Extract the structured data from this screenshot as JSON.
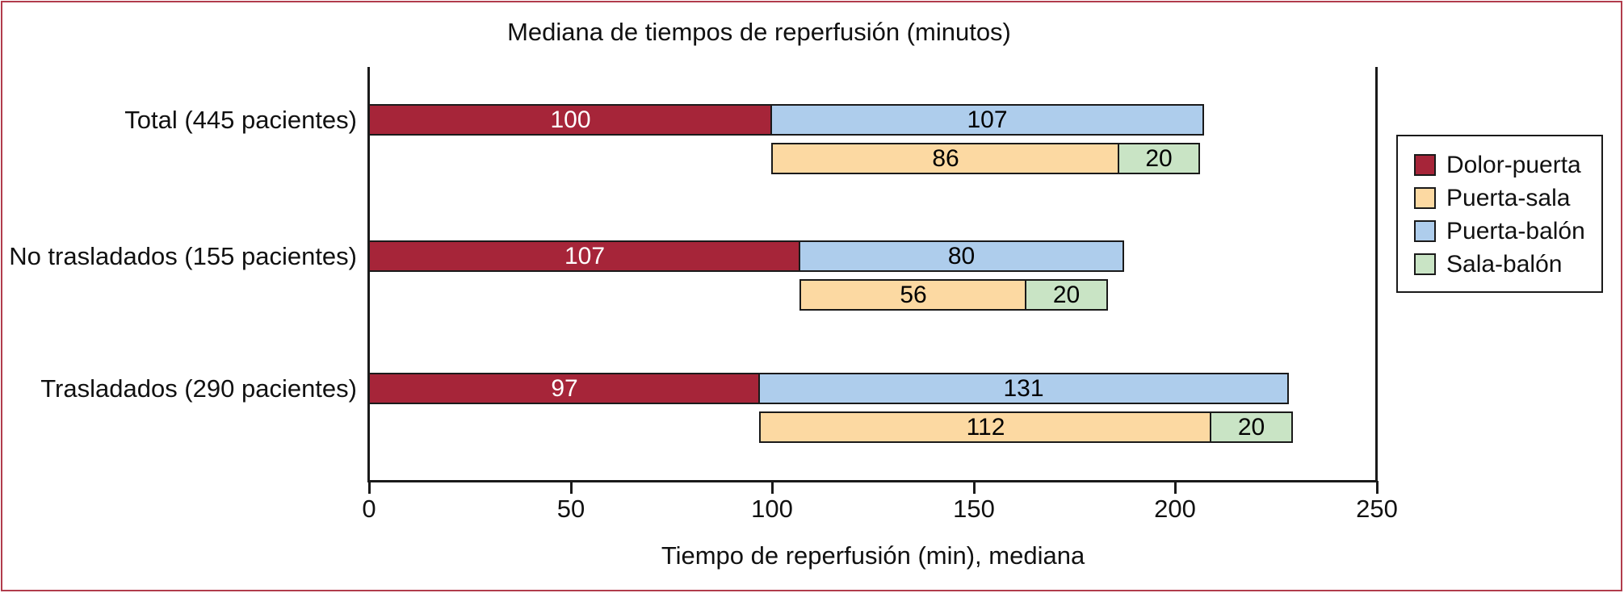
{
  "chart_data": {
    "type": "bar",
    "orientation": "horizontal",
    "stacked": true,
    "title": "Mediana de tiempos de reperfusión (minutos)",
    "xlabel": "Tiempo de reperfusión (min), mediana",
    "xlim": [
      0,
      250
    ],
    "xticks": [
      0,
      50,
      100,
      150,
      200,
      250
    ],
    "grid": false,
    "legend_position": "right-inside",
    "categories": [
      "Total (445 pacientes)",
      "No trasladados (155 pacientes)",
      "Trasladados (290 pacientes)"
    ],
    "series": [
      {
        "name": "Dolor-puerta",
        "row": "top",
        "color": "#a62539",
        "value_color": "#ffffff",
        "values": [
          100,
          107,
          97
        ]
      },
      {
        "name": "Puerta-balón",
        "row": "top",
        "color": "#aecdec",
        "value_color": "#000000",
        "values": [
          107,
          80,
          131
        ]
      },
      {
        "name": "Puerta-sala",
        "row": "bottom",
        "color": "#fcd9a2",
        "value_color": "#000000",
        "values": [
          86,
          56,
          112
        ]
      },
      {
        "name": "Sala-balón",
        "row": "bottom",
        "color": "#c9e4c5",
        "value_color": "#000000",
        "values": [
          20,
          20,
          20
        ]
      }
    ],
    "bottom_row_offset_by_series": "Dolor-puerta",
    "legend": [
      {
        "label": "Dolor-puerta",
        "color": "#a62539"
      },
      {
        "label": "Puerta-sala",
        "color": "#fcd9a2"
      },
      {
        "label": "Puerta-balón",
        "color": "#aecdec"
      },
      {
        "label": "Sala-balón",
        "color": "#c9e4c5"
      }
    ]
  },
  "colors": {
    "figure_border": "#b13c4c",
    "axis": "#1a1a1a",
    "bar_border": "#1a1a1a",
    "background": "#ffffff"
  }
}
